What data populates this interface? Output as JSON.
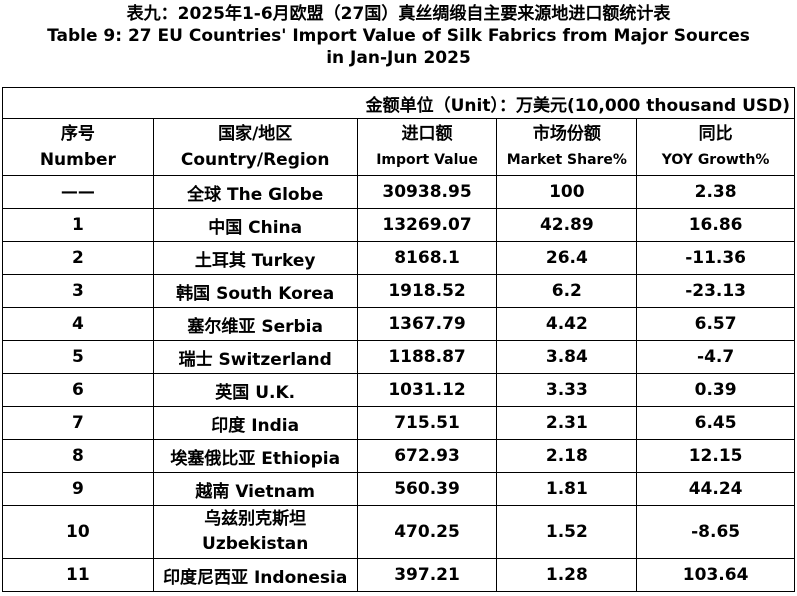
{
  "title_cn": "表九：2025年1-6月欧盟（27国）真丝绸缎自主要来源地进口额统计表",
  "title_en_1": "Table 9: 27 EU Countries' Import Value of Silk Fabrics from Major Sources",
  "title_en_2": "in Jan-Jun 2025",
  "unit": "金额单位（Unit）：万美元(10,000 thousand USD)",
  "headers": [
    {
      "cn": "序号",
      "en": "Number"
    },
    {
      "cn": "国家/地区",
      "en": "Country/Region"
    },
    {
      "cn": "进口额",
      "en": "Import Value"
    },
    {
      "cn": "市场份额",
      "en": "Market Share%"
    },
    {
      "cn": "同比",
      "en": "YOY Growth%"
    }
  ],
  "rows": [
    [
      "——",
      "全球 The Globe",
      "30938.95",
      "100",
      "2.38"
    ],
    [
      "1",
      "中国 China",
      "13269.07",
      "42.89",
      "16.86"
    ],
    [
      "2",
      "土耳其 Turkey",
      "8168.1",
      "26.4",
      "-11.36"
    ],
    [
      "3",
      "韩国 South Korea",
      "1918.52",
      "6.2",
      "-23.13"
    ],
    [
      "4",
      "塞尔维亚 Serbia",
      "1367.79",
      "4.42",
      "6.57"
    ],
    [
      "5",
      "瑞士 Switzerland",
      "1188.87",
      "3.84",
      "-4.7"
    ],
    [
      "6",
      "英国 U.K.",
      "1031.12",
      "3.33",
      "0.39"
    ],
    [
      "7",
      "印度 India",
      "715.51",
      "2.31",
      "6.45"
    ],
    [
      "8",
      "埃塞俄比亚 Ethiopia",
      "672.93",
      "2.18",
      "12.15"
    ],
    [
      "9",
      "越南 Vietnam",
      "560.39",
      "1.81",
      "44.24"
    ],
    [
      "10",
      "乌兹别克斯坦 Uzbekistan",
      "470.25",
      "1.52",
      "-8.65"
    ],
    [
      "11",
      "印度尼西亚 Indonesia",
      "397.21",
      "1.28",
      "103.64"
    ]
  ]
}
